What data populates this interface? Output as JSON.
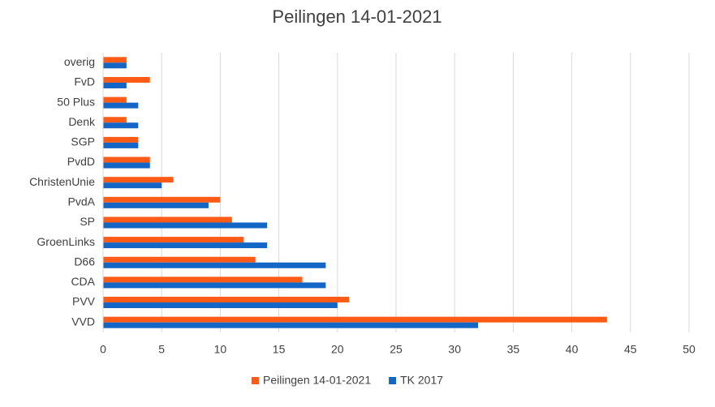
{
  "chart_data": {
    "type": "hbar",
    "title": "Peilingen 14-01-2021",
    "categories": [
      "overig",
      "FvD",
      "50 Plus",
      "Denk",
      "SGP",
      "PvdD",
      "ChristenUnie",
      "PvdA",
      "SP",
      "GroenLinks",
      "D66",
      "CDA",
      "PVV",
      "VVD"
    ],
    "series": [
      {
        "name": "Peilingen 14-01-2021",
        "color": "#fe5b16",
        "values": [
          2,
          4,
          2,
          2,
          3,
          4,
          6,
          10,
          11,
          12,
          13,
          17,
          21,
          43
        ]
      },
      {
        "name": "TK 2017",
        "color": "#1466c6",
        "values": [
          2,
          2,
          3,
          3,
          3,
          4,
          5,
          9,
          14,
          14,
          19,
          19,
          20,
          32
        ]
      }
    ],
    "xlim": [
      0,
      50
    ],
    "xticks": [
      0,
      5,
      10,
      15,
      20,
      25,
      30,
      35,
      40,
      45,
      50
    ],
    "grid": true,
    "legend": "bottom"
  }
}
